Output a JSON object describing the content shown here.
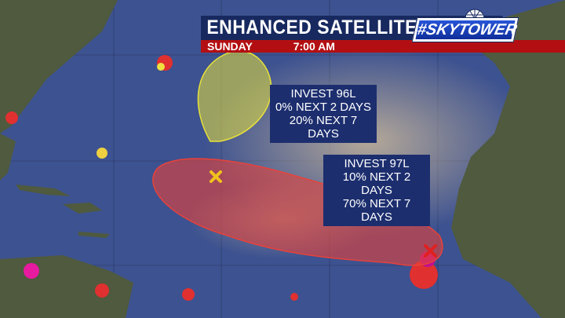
{
  "header": {
    "title": "ENHANCED SATELLITE",
    "day": "SUNDAY",
    "time": "7:00 AM",
    "logo": "#SKYTOWER"
  },
  "systems": [
    {
      "name": "INVEST 96L",
      "two_day": "0% NEXT 2 DAYS",
      "seven_day": "20% NEXT 7 DAYS",
      "cone_color": "#e8e23a",
      "marker": "x-icon",
      "marker_color": "#f2c21c"
    },
    {
      "name": "INVEST 97L",
      "two_day": "10% NEXT 2 DAYS",
      "seven_day": "70% NEXT 7 DAYS",
      "cone_color": "#e8423a",
      "marker": "x-icon",
      "marker_color": "#e02020"
    }
  ],
  "colors": {
    "ocean": "#3d5290",
    "land": "#4f5a3e",
    "title_bar": "#17295f",
    "date_bar": "#b30f12"
  }
}
